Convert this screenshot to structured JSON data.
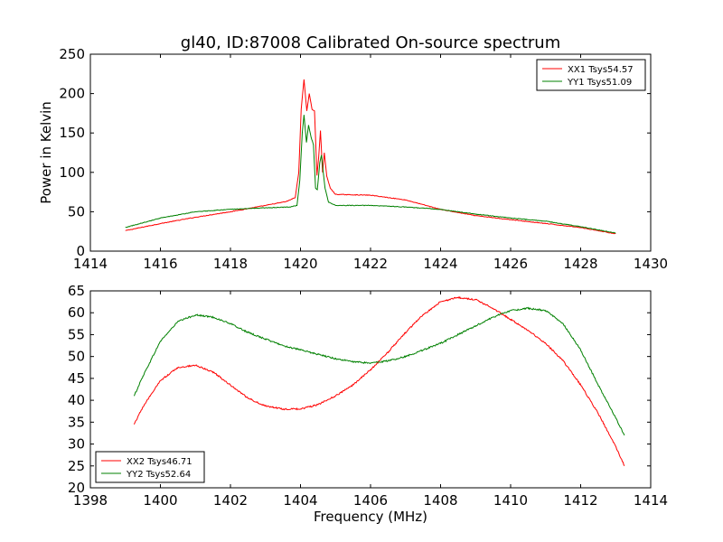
{
  "title": "gl40, ID:87008 Calibrated On-source spectrum",
  "chart_data": [
    {
      "type": "line",
      "ylabel": "Power in Kelvin",
      "xlabel": "",
      "xlim": [
        1414,
        1430
      ],
      "ylim": [
        0,
        250
      ],
      "xticks": [
        1414,
        1416,
        1418,
        1420,
        1422,
        1424,
        1426,
        1428,
        1430
      ],
      "yticks": [
        0,
        50,
        100,
        150,
        200,
        250
      ],
      "legend_position": "top-right",
      "series": [
        {
          "name": "XX1 Tsys54.57",
          "color": "#ff0000",
          "x": [
            1415.0,
            1416.0,
            1417.0,
            1418.0,
            1419.0,
            1419.6,
            1419.85,
            1419.95,
            1420.02,
            1420.1,
            1420.18,
            1420.25,
            1420.33,
            1420.4,
            1420.47,
            1420.52,
            1420.57,
            1420.63,
            1420.68,
            1420.75,
            1420.85,
            1421.0,
            1422.0,
            1423.0,
            1424.0,
            1425.0,
            1426.0,
            1427.0,
            1428.0,
            1429.0
          ],
          "y": [
            26,
            35,
            43,
            50,
            58,
            63,
            68,
            100,
            180,
            218,
            178,
            200,
            180,
            178,
            96,
            120,
            153,
            100,
            125,
            95,
            80,
            72,
            71,
            65,
            53,
            45,
            40,
            35,
            30,
            22
          ]
        },
        {
          "name": "YY1 Tsys51.09",
          "color": "#008000",
          "x": [
            1415.0,
            1416.0,
            1417.0,
            1418.0,
            1419.0,
            1419.7,
            1419.9,
            1419.98,
            1420.05,
            1420.1,
            1420.17,
            1420.23,
            1420.3,
            1420.37,
            1420.43,
            1420.48,
            1420.55,
            1420.6,
            1420.65,
            1420.7,
            1420.8,
            1421.0,
            1422.0,
            1423.0,
            1424.0,
            1425.0,
            1426.0,
            1427.0,
            1428.0,
            1429.0
          ],
          "y": [
            30,
            42,
            50,
            53,
            55,
            56,
            58,
            90,
            150,
            173,
            138,
            160,
            145,
            135,
            80,
            78,
            112,
            122,
            100,
            80,
            62,
            58,
            58,
            56,
            53,
            47,
            42,
            38,
            31,
            23
          ]
        }
      ]
    },
    {
      "type": "line",
      "xlabel": "Frequency (MHz)",
      "ylabel": "",
      "xlim": [
        1398,
        1414
      ],
      "ylim": [
        20,
        65
      ],
      "xticks": [
        1398,
        1400,
        1402,
        1404,
        1406,
        1408,
        1410,
        1412,
        1414
      ],
      "yticks": [
        20,
        25,
        30,
        35,
        40,
        45,
        50,
        55,
        60,
        65
      ],
      "legend_position": "bottom-left",
      "series": [
        {
          "name": "XX2 Tsys46.71",
          "color": "#ff0000",
          "x": [
            1399.25,
            1399.5,
            1400.0,
            1400.5,
            1401.0,
            1401.5,
            1402.0,
            1402.5,
            1403.0,
            1403.5,
            1404.0,
            1404.5,
            1405.0,
            1405.5,
            1406.0,
            1406.5,
            1407.0,
            1407.5,
            1408.0,
            1408.5,
            1409.0,
            1409.5,
            1410.0,
            1410.5,
            1411.0,
            1411.5,
            1412.0,
            1412.5,
            1413.0,
            1413.25
          ],
          "y": [
            34.5,
            38.5,
            44.5,
            47.5,
            48.0,
            46.5,
            43.5,
            40.5,
            38.7,
            38.0,
            38.0,
            39.0,
            41.0,
            43.5,
            47.0,
            51.0,
            55.5,
            59.5,
            62.5,
            63.5,
            63.0,
            61.0,
            58.5,
            56.0,
            53.0,
            49.0,
            43.5,
            37.0,
            29.5,
            25.0
          ]
        },
        {
          "name": "YY2 Tsys52.64",
          "color": "#008000",
          "x": [
            1399.25,
            1399.5,
            1400.0,
            1400.5,
            1401.0,
            1401.5,
            1402.0,
            1402.5,
            1403.0,
            1403.5,
            1404.0,
            1404.5,
            1405.0,
            1405.5,
            1406.0,
            1406.5,
            1407.0,
            1407.5,
            1408.0,
            1408.5,
            1409.0,
            1409.5,
            1410.0,
            1410.5,
            1411.0,
            1411.5,
            1412.0,
            1412.5,
            1413.0,
            1413.25
          ],
          "y": [
            41.0,
            45.5,
            53.5,
            58.0,
            59.5,
            59.0,
            57.5,
            55.5,
            54.0,
            52.5,
            51.5,
            50.5,
            49.5,
            48.8,
            48.5,
            49.0,
            50.0,
            51.5,
            53.0,
            55.0,
            57.0,
            59.0,
            60.5,
            61.0,
            60.5,
            57.5,
            51.5,
            43.5,
            36.0,
            32.0
          ]
        }
      ]
    }
  ]
}
